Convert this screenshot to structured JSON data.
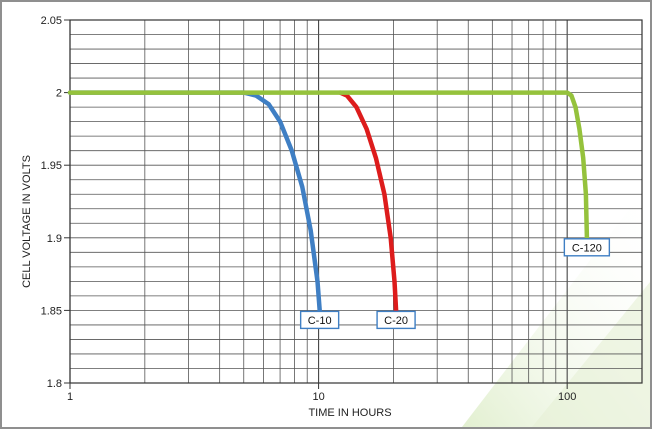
{
  "chart_data": {
    "type": "line",
    "title": "",
    "xlabel": "TIME IN HOURS",
    "ylabel": "CELL VOLTAGE IN VOLTS",
    "x_scale": "log",
    "xlim": [
      1,
      200
    ],
    "ylim": [
      1.8,
      2.05
    ],
    "x_tick_labels": [
      "1",
      "10",
      "100"
    ],
    "y_tick_labels": [
      "1.8",
      "1.85",
      "1.9",
      "1.95",
      "2",
      "2.05"
    ],
    "grid": true,
    "series": [
      {
        "name": "C-10",
        "color": "#3f7fc4",
        "x": [
          1,
          3,
          5,
          5.6,
          6.3,
          7.0,
          7.8,
          8.6,
          9.3,
          9.9,
          10.1
        ],
        "y": [
          2.0,
          2.0,
          2.0,
          1.998,
          1.992,
          1.98,
          1.96,
          1.935,
          1.905,
          1.87,
          1.85
        ],
        "label": "C-10"
      },
      {
        "name": "C-20",
        "color": "#dd1c1c",
        "x": [
          12.2,
          13.0,
          14.2,
          15.6,
          17.0,
          18.4,
          19.5,
          20.2,
          20.5
        ],
        "y": [
          2.0,
          1.998,
          1.99,
          1.975,
          1.955,
          1.93,
          1.9,
          1.87,
          1.85
        ],
        "label": "C-20"
      },
      {
        "name": "C-120",
        "color": "#95c23c",
        "x": [
          1,
          50,
          100,
          104,
          108,
          112,
          116,
          119,
          120
        ],
        "y": [
          2.0,
          2.0,
          2.0,
          1.998,
          1.99,
          1.975,
          1.955,
          1.93,
          1.9
        ],
        "label": "C-120"
      }
    ]
  }
}
